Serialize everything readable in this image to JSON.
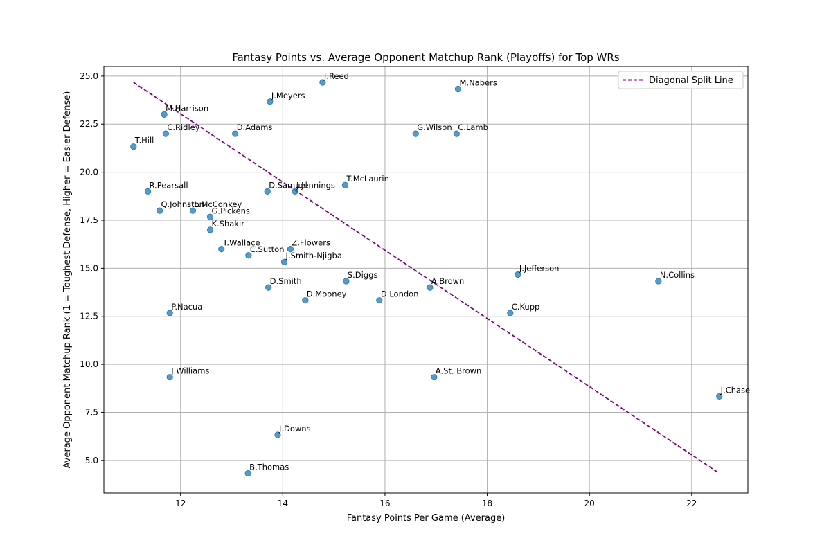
{
  "chart_data": {
    "type": "scatter",
    "title": "Fantasy Points vs. Average Opponent Matchup Rank (Playoffs) for Top WRs",
    "xlabel": "Fantasy Points Per Game (Average)",
    "ylabel": "Average Opponent Matchup Rank (1 = Toughest Defense, Higher = Easier Defense)",
    "xlim": [
      10.5,
      23.1
    ],
    "ylim": [
      3.3,
      25.5
    ],
    "xticks": [
      12,
      14,
      16,
      18,
      20,
      22
    ],
    "yticks": [
      5.0,
      7.5,
      10.0,
      12.5,
      15.0,
      17.5,
      20.0,
      22.5,
      25.0
    ],
    "grid": true,
    "legend_position": "top-right",
    "marker_color": "#1f77b4",
    "points": [
      {
        "label": "J.Reed",
        "x": 14.78,
        "y": 24.67
      },
      {
        "label": "M.Nabers",
        "x": 17.43,
        "y": 24.33
      },
      {
        "label": "J.Meyers",
        "x": 13.75,
        "y": 23.67
      },
      {
        "label": "M.Harrison",
        "x": 11.68,
        "y": 23.0
      },
      {
        "label": "C.Ridley",
        "x": 11.71,
        "y": 22.0
      },
      {
        "label": "D.Adams",
        "x": 13.07,
        "y": 22.0
      },
      {
        "label": "G.Wilson",
        "x": 16.6,
        "y": 22.0
      },
      {
        "label": "C.Lamb",
        "x": 17.4,
        "y": 22.0
      },
      {
        "label": "T.Hill",
        "x": 11.08,
        "y": 21.33
      },
      {
        "label": "T.McLaurin",
        "x": 15.22,
        "y": 19.33
      },
      {
        "label": "R.Pearsall",
        "x": 11.36,
        "y": 19.0
      },
      {
        "label": "D.Samuel",
        "x": 13.7,
        "y": 19.0
      },
      {
        "label": "J.Jennings",
        "x": 14.24,
        "y": 19.0
      },
      {
        "label": "Q.Johnston",
        "x": 11.59,
        "y": 18.0
      },
      {
        "label": "L.McConkey",
        "x": 12.24,
        "y": 18.0
      },
      {
        "label": "G.Pickens",
        "x": 12.58,
        "y": 17.67
      },
      {
        "label": "K.Shakir",
        "x": 12.58,
        "y": 17.0
      },
      {
        "label": "T.Wallace",
        "x": 12.8,
        "y": 16.0
      },
      {
        "label": "Z.Flowers",
        "x": 14.15,
        "y": 16.0
      },
      {
        "label": "C.Sutton",
        "x": 13.33,
        "y": 15.67
      },
      {
        "label": "J.Smith-Njigba",
        "x": 14.03,
        "y": 15.33
      },
      {
        "label": "J.Jefferson",
        "x": 18.6,
        "y": 14.67
      },
      {
        "label": "S.Diggs",
        "x": 15.24,
        "y": 14.33
      },
      {
        "label": "N.Collins",
        "x": 21.35,
        "y": 14.33
      },
      {
        "label": "A.Brown",
        "x": 16.88,
        "y": 14.0
      },
      {
        "label": "D.Smith",
        "x": 13.72,
        "y": 14.0
      },
      {
        "label": "D.Mooney",
        "x": 14.44,
        "y": 13.33
      },
      {
        "label": "D.London",
        "x": 15.89,
        "y": 13.33
      },
      {
        "label": "P.Nacua",
        "x": 11.79,
        "y": 12.67
      },
      {
        "label": "C.Kupp",
        "x": 18.45,
        "y": 12.67
      },
      {
        "label": "J.Williams",
        "x": 11.79,
        "y": 9.33
      },
      {
        "label": "A.St. Brown",
        "x": 16.96,
        "y": 9.33
      },
      {
        "label": "J.Chase",
        "x": 22.54,
        "y": 8.33
      },
      {
        "label": "J.Downs",
        "x": 13.9,
        "y": 6.33
      },
      {
        "label": "B.Thomas",
        "x": 13.32,
        "y": 4.33
      }
    ],
    "series": [
      {
        "name": "Diagonal Split Line",
        "style": "dashed",
        "color": "#800080",
        "x": [
          11.08,
          22.54
        ],
        "y": [
          24.67,
          4.33
        ]
      }
    ]
  }
}
